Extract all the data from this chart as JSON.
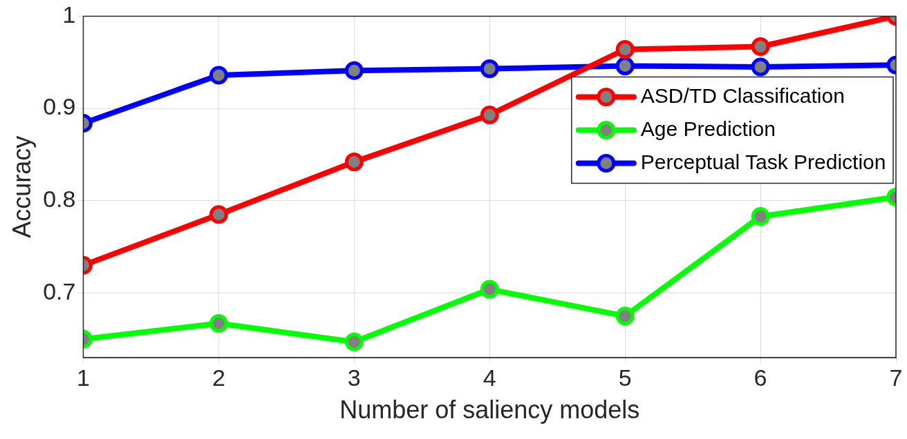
{
  "chart_data": {
    "type": "line",
    "xlabel": "Number of saliency models",
    "ylabel": "Accuracy",
    "x": [
      1,
      2,
      3,
      4,
      5,
      6,
      7
    ],
    "series": [
      {
        "name": "ASD/TD Classification",
        "color": "#ff0000",
        "values": [
          0.73,
          0.785,
          0.842,
          0.893,
          0.964,
          0.967,
          1.0
        ]
      },
      {
        "name": "Age Prediction",
        "color": "#00ff00",
        "values": [
          0.65,
          0.667,
          0.647,
          0.704,
          0.675,
          0.783,
          0.804
        ]
      },
      {
        "name": "Perceptual Task Prediction",
        "color": "#0000ff",
        "values": [
          0.884,
          0.936,
          0.941,
          0.943,
          0.946,
          0.945,
          0.947
        ]
      }
    ],
    "xlim": [
      1,
      7
    ],
    "xticks": [
      1,
      2,
      3,
      4,
      5,
      6,
      7
    ],
    "ylim": [
      0.63,
      1
    ],
    "yticks": [
      0.7,
      0.8,
      0.9,
      1
    ],
    "grid": true,
    "legend": "top right",
    "marker": "circle",
    "line_style": "solid"
  }
}
